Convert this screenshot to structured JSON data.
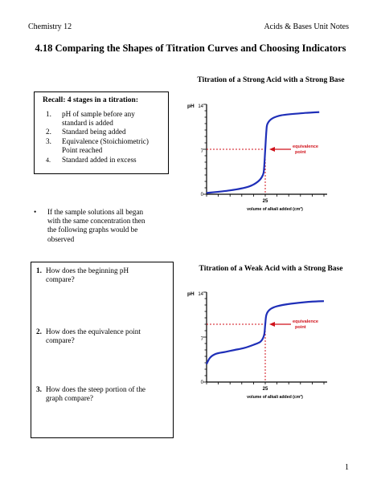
{
  "header": {
    "left": "Chemistry 12",
    "right": "Acids & Bases Unit Notes"
  },
  "title": "4.18 Comparing the Shapes of Titration Curves and Choosing Indicators",
  "recall": {
    "heading": "Recall: 4 stages in a titration:",
    "items": [
      {
        "num": "1.",
        "text": "pH of  sample before any standard is added"
      },
      {
        "num": "2.",
        "text": "Standard being added"
      },
      {
        "num": "3.",
        "text": "Equivalence (Stoichiometric) Point reached"
      },
      {
        "num": "4.",
        "text": "Standard added in excess"
      }
    ]
  },
  "bullet": {
    "symbol": "•",
    "text": "If the sample solutions all began with the same concentration then the following graphs would be observed"
  },
  "questions": [
    {
      "num": "1.",
      "text": "How does the beginning pH compare?"
    },
    {
      "num": "2.",
      "text": "How does the equivalence point compare?"
    },
    {
      "num": "3.",
      "text": "How does the steep portion of the graph compare?"
    }
  ],
  "charts": [
    {
      "title": "Titration of a Strong Acid with a Strong Base",
      "ylabel": "pH",
      "yticks": [
        "14",
        "7",
        "0"
      ],
      "xtick": "25",
      "xlabel": "volume of alkali added (cm³)",
      "annotation": "equivalence point",
      "curve_color": "#1f2fb8",
      "marker_color": "#d0121b"
    },
    {
      "title": "Titration of a Weak Acid with a Strong Base",
      "ylabel": "pH",
      "yticks": [
        "14",
        "7",
        "0"
      ],
      "xtick": "25",
      "xlabel": "volume of alkali added (cm³)",
      "annotation": "equivalence point",
      "curve_color": "#1f2fb8",
      "marker_color": "#d0121b"
    }
  ],
  "chart_data": [
    {
      "type": "line",
      "title": "Titration of a Strong Acid with a Strong Base",
      "xlabel": "volume of alkali added (cm³)",
      "ylabel": "pH",
      "xlim": [
        0,
        50
      ],
      "ylim": [
        0,
        14
      ],
      "x": [
        0,
        10,
        18,
        22,
        24,
        24.5,
        25,
        25.5,
        26,
        28,
        32,
        40,
        48
      ],
      "y": [
        0.2,
        0.6,
        1.2,
        2.0,
        3.0,
        4.0,
        7.0,
        10.0,
        11.0,
        11.8,
        12.3,
        12.6,
        12.8
      ],
      "equivalence": {
        "x": 25,
        "y": 7
      }
    },
    {
      "type": "line",
      "title": "Titration of a Weak Acid with a Strong Base",
      "xlabel": "volume of alkali added (cm³)",
      "ylabel": "pH",
      "xlim": [
        0,
        50
      ],
      "ylim": [
        0,
        14
      ],
      "x": [
        0,
        1.5,
        4,
        8,
        12,
        16,
        20,
        23,
        24.5,
        25,
        25.5,
        27,
        30,
        36,
        44,
        50
      ],
      "y": [
        2.8,
        3.8,
        4.4,
        4.7,
        5.0,
        5.3,
        5.8,
        6.3,
        7.3,
        9.0,
        10.5,
        11.3,
        11.8,
        12.2,
        12.5,
        12.6
      ],
      "equivalence": {
        "x": 25,
        "y": 9
      }
    }
  ],
  "page_number": "1"
}
